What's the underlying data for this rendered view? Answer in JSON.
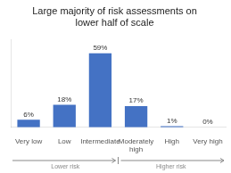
{
  "chart_data": {
    "type": "bar",
    "title": "Large majority of risk assessments on\nlower half of scale",
    "categories": [
      "Very low",
      "Low",
      "Intermediate",
      "Moderately\nhigh",
      "High",
      "Very high"
    ],
    "values": [
      6,
      18,
      59,
      17,
      1,
      0
    ],
    "value_labels": [
      "6%",
      "18%",
      "59%",
      "17%",
      "1%",
      "0%"
    ],
    "data_labels": true,
    "color": "#4472C4",
    "ylim": [
      0,
      70
    ],
    "grid": false,
    "tick_labels": "x",
    "annotations": [
      "Lower risk",
      "Higher risk"
    ]
  }
}
